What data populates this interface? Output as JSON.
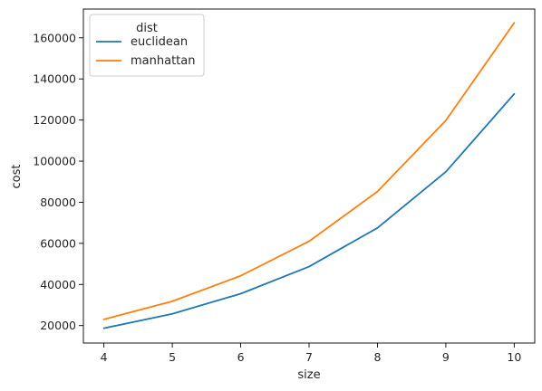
{
  "chart_data": {
    "type": "line",
    "xlabel": "size",
    "ylabel": "cost",
    "x": [
      4,
      5,
      6,
      7,
      8,
      9,
      10
    ],
    "xlim": [
      3.7,
      10.3
    ],
    "ylim": [
      11500,
      174000
    ],
    "xticks": [
      4,
      5,
      6,
      7,
      8,
      9,
      10
    ],
    "yticks": [
      20000,
      40000,
      60000,
      80000,
      100000,
      120000,
      140000,
      160000
    ],
    "grid": false,
    "legend": {
      "title": "dist",
      "placement": "top-left"
    },
    "series": [
      {
        "name": "euclidean",
        "color": "#1f77b4",
        "values": [
          18700,
          25700,
          35500,
          48700,
          67500,
          94800,
          132700
        ]
      },
      {
        "name": "manhattan",
        "color": "#ff7f0e",
        "values": [
          23000,
          31800,
          44200,
          61000,
          85200,
          119800,
          167300
        ]
      }
    ]
  }
}
